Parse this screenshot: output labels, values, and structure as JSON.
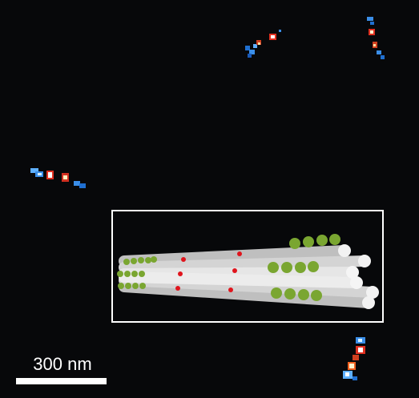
{
  "scale_bar": {
    "label": "300 nm"
  }
}
